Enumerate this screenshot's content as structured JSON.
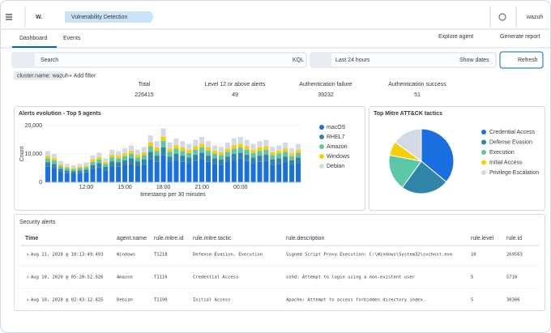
{
  "header": {
    "logo": "W.",
    "breadcrumb": "Vulnerability Detection",
    "user": "wazuh"
  },
  "tabs": [
    "Dashboard",
    "Events"
  ],
  "actions": [
    "Explore agent",
    "Generate report"
  ],
  "search": {
    "placeholder": "Search",
    "language": "KQL",
    "date_range": "Last 24 hours",
    "show_dates": "Show dates",
    "refresh": "Refresh"
  },
  "filters": {
    "pill": "cluster.name: wazuh",
    "add": "+ Add filter"
  },
  "metrics": [
    {
      "label": "Total",
      "value": 226415,
      "color": "#006bb4"
    },
    {
      "label": "Level 12 or above alerts",
      "value": 49,
      "color": "#bd271e"
    },
    {
      "label": "Authentication failure",
      "value": 39232,
      "color": "#bd271e"
    },
    {
      "label": "Authentication success",
      "value": 51,
      "color": "#006bb4"
    }
  ],
  "chart_data": [
    {
      "type": "bar",
      "stacked": true,
      "title": "Alerts evolution - Top 5 agents",
      "x_label": "timestamp per 30 minutes",
      "y_label": "Count",
      "categories": [
        null,
        null,
        null,
        null,
        null,
        null,
        "12:00",
        null,
        null,
        null,
        null,
        null,
        "15:00",
        null,
        null,
        null,
        null,
        null,
        "18:00",
        null,
        null,
        null,
        null,
        null,
        "21:00",
        null,
        null,
        null,
        null,
        null,
        "00:00",
        null,
        null,
        null,
        null,
        null,
        null,
        null,
        null,
        null
      ],
      "series": [
        {
          "name": "macOS",
          "color": "#1a6fe0",
          "values": [
            5500,
            5000,
            3700,
            3200,
            3000,
            3200,
            3500,
            4700,
            5200,
            4200,
            5700,
            5500,
            6000,
            6500,
            5700,
            6200,
            8200,
            7200,
            9500,
            7000,
            7700,
            7200,
            6700,
            7500,
            8000,
            7200,
            6500,
            6200,
            7000,
            7700,
            8000,
            7500,
            6700,
            7200,
            7500,
            6200,
            6500,
            7000,
            6000,
            6700
          ]
        },
        {
          "name": "RHEL7",
          "color": "#3185a8",
          "values": [
            1600,
            1500,
            1100,
            1000,
            900,
            1000,
            1000,
            1400,
            1600,
            1300,
            1700,
            1600,
            1800,
            2000,
            1700,
            1900,
            2500,
            2200,
            2800,
            2100,
            2300,
            2200,
            2000,
            2200,
            2400,
            2200,
            2000,
            1900,
            2100,
            2300,
            2400,
            2200,
            2000,
            2200,
            2200,
            1900,
            2000,
            2100,
            1800,
            2000
          ]
        },
        {
          "name": "Amazon",
          "color": "#5cc7a7",
          "values": [
            1300,
            1200,
            900,
            800,
            700,
            800,
            800,
            1100,
            1300,
            1000,
            1400,
            1300,
            1400,
            1600,
            1400,
            1500,
            2000,
            1700,
            2300,
            1700,
            1900,
            1700,
            1600,
            1800,
            1900,
            1700,
            1600,
            1500,
            1700,
            1900,
            1900,
            1800,
            1600,
            1700,
            1800,
            1500,
            1600,
            1700,
            1400,
            1600
          ]
        },
        {
          "name": "Windows",
          "color": "#f5d000",
          "values": [
            900,
            800,
            600,
            500,
            500,
            500,
            600,
            800,
            800,
            700,
            900,
            900,
            1000,
            1000,
            900,
            1000,
            1300,
            1200,
            1500,
            1100,
            1200,
            1200,
            1100,
            1200,
            1300,
            1200,
            1000,
            1000,
            1100,
            1200,
            1300,
            1200,
            1100,
            1200,
            1200,
            1000,
            1000,
            1100,
            1000,
            1100
          ]
        },
        {
          "name": "Debian",
          "color": "#d3dae6",
          "values": [
            1700,
            1500,
            1200,
            1000,
            900,
            1000,
            1100,
            1500,
            1600,
            1300,
            1800,
            1700,
            1800,
            1900,
            1800,
            1900,
            2500,
            2200,
            2900,
            2100,
            2400,
            2200,
            2100,
            2300,
            2400,
            2200,
            1900,
            1900,
            2100,
            2400,
            2400,
            2300,
            2100,
            2200,
            2300,
            1900,
            1900,
            2100,
            1800,
            2100
          ]
        }
      ],
      "ylim": [
        0,
        20000
      ],
      "yticks": [
        0,
        {
          "value": 10000,
          "label": "10,000"
        },
        {
          "value": 20000,
          "label": "20,000"
        }
      ],
      "legend": "right"
    },
    {
      "type": "pie",
      "title": "Top Mitre ATT&CK tactics",
      "categories": [
        "Credential Access",
        "Defense Evasion",
        "Execution",
        "Initial Access",
        "Privilege Escalation"
      ],
      "values": [
        36,
        24,
        18,
        7,
        15
      ],
      "colors": [
        "#1a6fe0",
        "#3185a8",
        "#5cc7a7",
        "#f5d000",
        "#d3dae6"
      ],
      "legend": "right"
    }
  ],
  "table": {
    "title": "Security alerts",
    "columns": [
      "Time",
      "agent.name",
      "rule.mitre.id",
      "rule.mitre.tactic",
      "rule.description",
      "rule.level",
      "rule.id"
    ],
    "rows": [
      [
        "Aug 11, 2020 @ 10:13:49.493",
        "Windows",
        "T1218",
        "Defense Evasion, Execution",
        "Signed Script Proxy Execution: C:\\Windows\\System32\\svchost.exe",
        10,
        269563
      ],
      [
        "Aug 10, 2020 @ 05:20:52.926",
        "Amazon",
        "T1110",
        "Credential Access",
        "sshd: Attempt to login using a non-existent user",
        5,
        5710
      ],
      [
        "Aug 10, 2020 @ 02:43:12.825",
        "Debian",
        "T1190",
        "Initial Access",
        "Apache: Attempt to access forbidden directory index.",
        5,
        30306
      ]
    ]
  }
}
